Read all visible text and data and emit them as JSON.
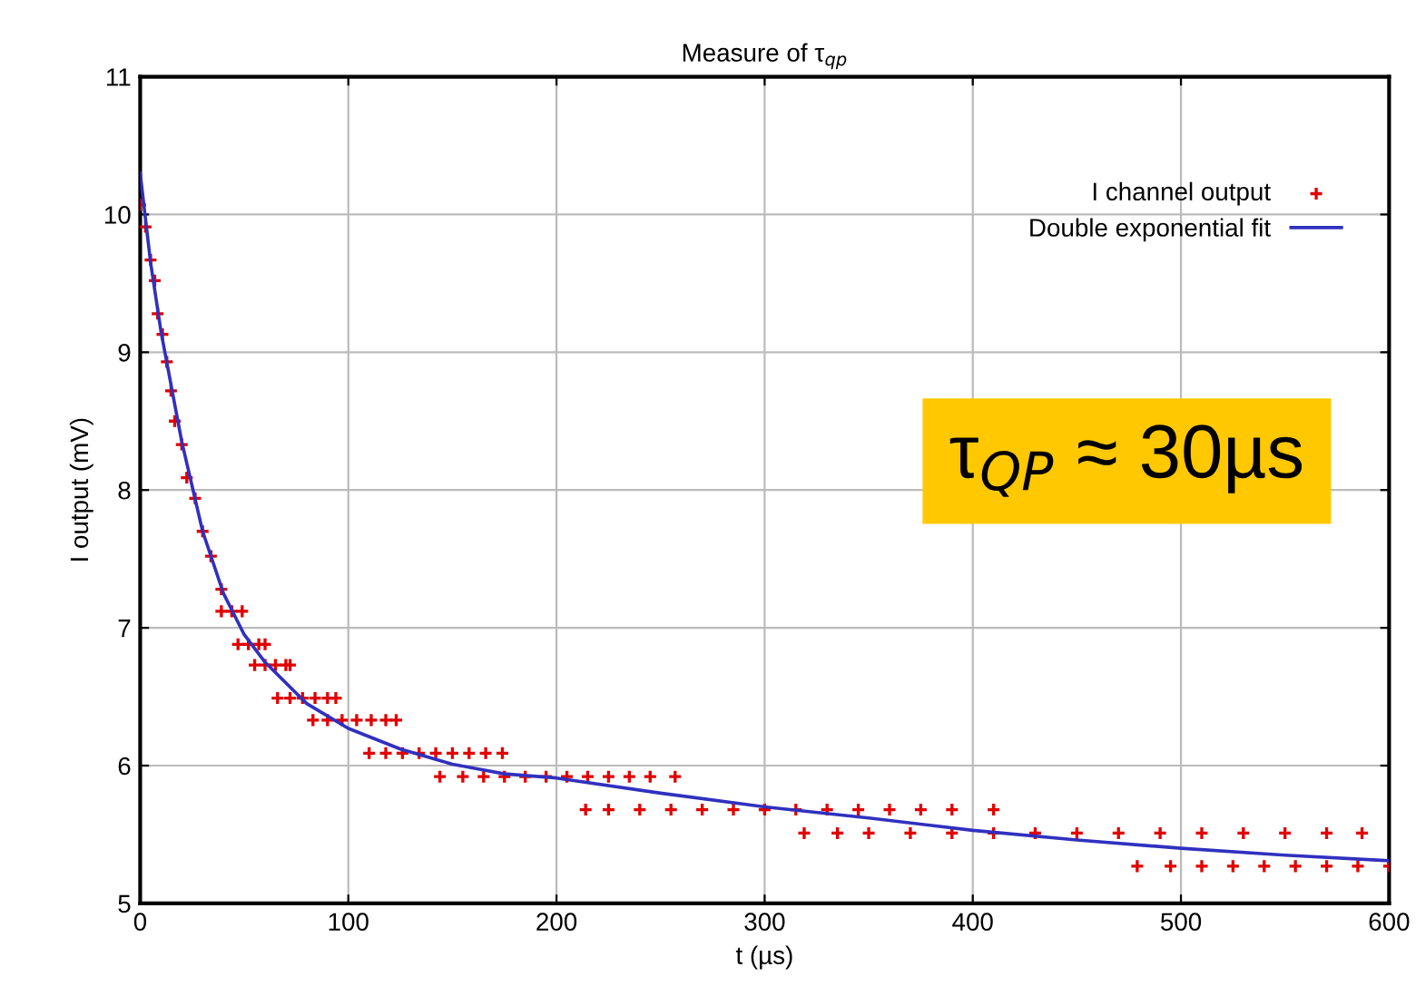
{
  "chart_data": {
    "type": "scatter",
    "title": "Measure of τ$_{qp}$",
    "xlabel": "t (µs)",
    "ylabel": "I output (mV)",
    "xlim": [
      0,
      600
    ],
    "ylim": [
      5,
      11
    ],
    "xticks": [
      0,
      100,
      200,
      300,
      400,
      500,
      600
    ],
    "yticks": [
      5,
      6,
      7,
      8,
      9,
      10,
      11
    ],
    "grid": true,
    "legend": "top right",
    "annotations": [
      "τ$_{QP}$ ≈ 30µs"
    ],
    "series": [
      {
        "name": "I channel output",
        "marker": "cross",
        "color": "#e00000",
        "x": [
          0,
          2.6,
          5,
          7,
          8.4,
          10.7,
          12.8,
          14.8,
          16.6,
          20,
          22.4,
          26.4,
          30,
          34,
          39,
          39,
          44,
          49,
          47,
          52,
          57,
          60,
          55,
          60,
          65,
          70,
          72,
          66,
          72,
          78,
          84,
          90,
          94,
          83,
          90,
          97,
          104,
          111,
          118,
          123,
          110,
          118,
          126,
          134,
          142,
          150,
          158,
          166,
          174,
          144,
          155,
          165,
          175,
          185,
          195,
          205,
          215,
          225,
          235,
          245,
          257,
          214,
          225,
          240,
          255,
          270,
          285,
          300,
          315,
          330,
          345,
          360,
          375,
          390,
          410,
          319,
          335,
          350,
          370,
          390,
          410,
          430,
          450,
          470,
          490,
          510,
          530,
          550,
          570,
          587,
          479,
          495,
          510,
          525,
          540,
          555,
          570,
          585,
          600
        ],
        "values": [
          10.07,
          9.91,
          9.67,
          9.52,
          9.28,
          9.13,
          8.93,
          8.72,
          8.5,
          8.33,
          8.09,
          7.94,
          7.7,
          7.52,
          7.28,
          7.12,
          7.12,
          7.12,
          6.88,
          6.88,
          6.88,
          6.88,
          6.73,
          6.73,
          6.73,
          6.73,
          6.73,
          6.49,
          6.49,
          6.49,
          6.49,
          6.49,
          6.49,
          6.33,
          6.33,
          6.33,
          6.33,
          6.33,
          6.33,
          6.33,
          6.09,
          6.09,
          6.09,
          6.09,
          6.09,
          6.09,
          6.09,
          6.09,
          6.09,
          5.92,
          5.92,
          5.92,
          5.92,
          5.92,
          5.92,
          5.92,
          5.92,
          5.92,
          5.92,
          5.92,
          5.92,
          5.68,
          5.68,
          5.68,
          5.68,
          5.68,
          5.68,
          5.68,
          5.68,
          5.68,
          5.68,
          5.68,
          5.68,
          5.68,
          5.68,
          5.51,
          5.51,
          5.51,
          5.51,
          5.51,
          5.51,
          5.51,
          5.51,
          5.51,
          5.51,
          5.51,
          5.51,
          5.51,
          5.51,
          5.51,
          5.27,
          5.27,
          5.27,
          5.27,
          5.27,
          5.27,
          5.27,
          5.27,
          5.27
        ]
      },
      {
        "name": "Double exponential fit",
        "type": "line",
        "marker": "none",
        "line_style": "solid",
        "color": "#3030c0",
        "x": [
          0,
          5,
          10,
          20,
          30,
          40,
          50,
          60,
          80,
          100,
          125,
          150,
          175,
          200,
          250,
          300,
          350,
          400,
          450,
          500,
          550,
          600
        ],
        "values": [
          10.3,
          9.65,
          9.15,
          8.35,
          7.7,
          7.25,
          6.95,
          6.75,
          6.45,
          6.27,
          6.12,
          6.01,
          5.94,
          5.91,
          5.8,
          5.7,
          5.62,
          5.53,
          5.46,
          5.4,
          5.35,
          5.31
        ]
      }
    ]
  }
}
